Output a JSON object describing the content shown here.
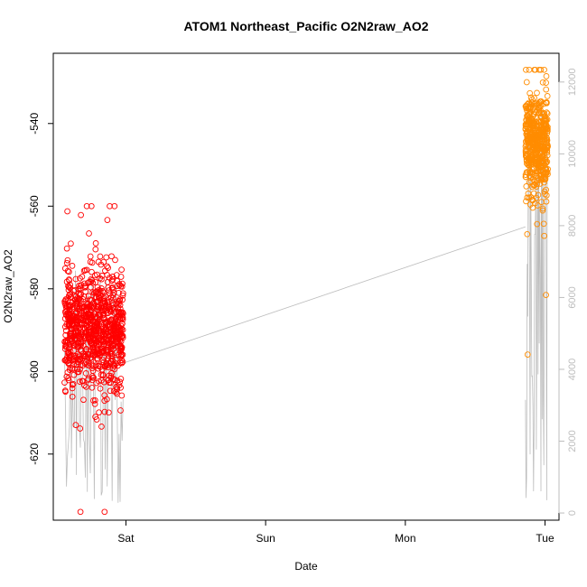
{
  "chart_data": {
    "type": "scatter",
    "title": "ATOM1 Northeast_Pacific O2N2raw_AO2",
    "xlabel": "Date",
    "ylabel": "O2N2raw_AO2",
    "x_ticks": [
      {
        "label": "Sat",
        "day": 1
      },
      {
        "label": "Sun",
        "day": 2
      },
      {
        "label": "Mon",
        "day": 3
      },
      {
        "label": "Tue",
        "day": 4
      }
    ],
    "xlim": [
      0.48,
      4.1
    ],
    "ylim": [
      -636,
      -523
    ],
    "y_ticks": [
      -620,
      -600,
      -580,
      -560,
      -540
    ],
    "right_axis": {
      "ylim": [
        -200,
        12800
      ],
      "ticks": [
        0,
        2000,
        4000,
        6000,
        8000,
        10000,
        12000
      ],
      "color": "#bdbdbd"
    },
    "series": [
      {
        "color": "#ff0000",
        "x_range": [
          0.56,
          0.98
        ],
        "y_center": -590,
        "y_spread": 7,
        "y_min": -634,
        "y_max": -560,
        "count": 900
      },
      {
        "color": "#ff8c00",
        "x_range": [
          3.86,
          4.02
        ],
        "y_center": -545,
        "y_spread": 6,
        "y_min": -606,
        "y_max": -527,
        "count": 520
      }
    ],
    "connector_line": {
      "color": "#bdbdbd",
      "from": {
        "day": 0.98,
        "value": -598
      },
      "to": {
        "day": 3.86,
        "value": -565
      }
    }
  }
}
